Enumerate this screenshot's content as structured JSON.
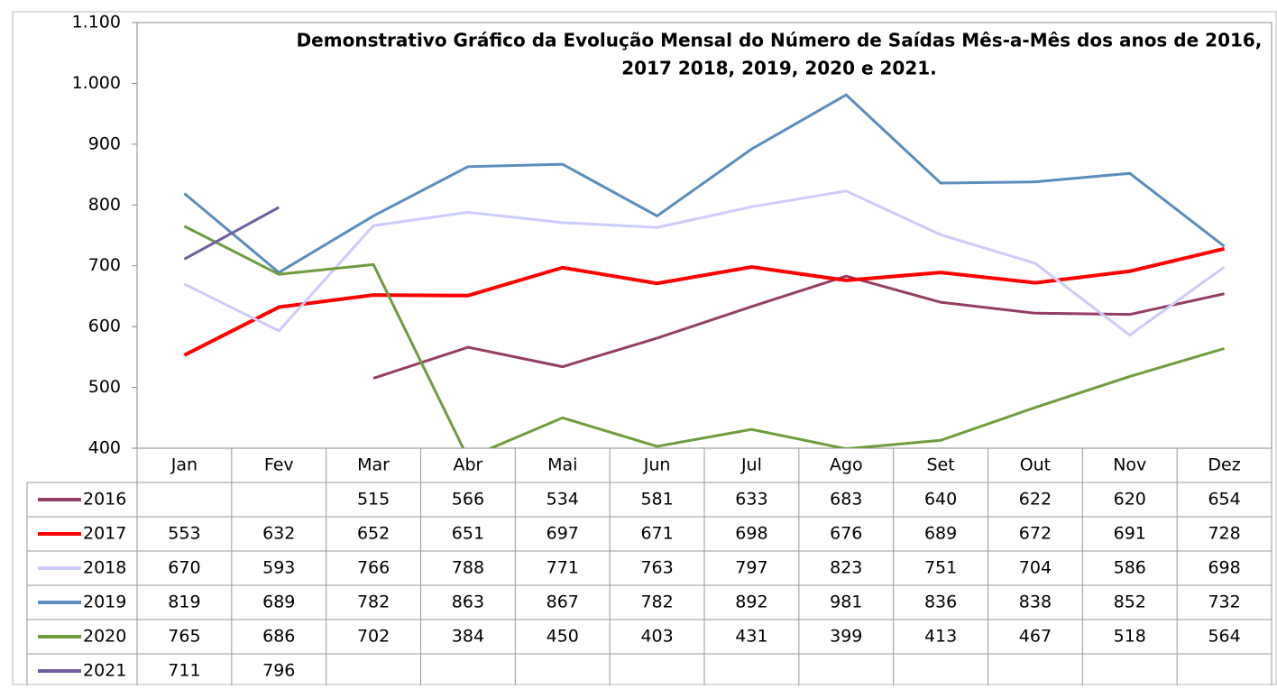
{
  "chart_data": {
    "type": "line",
    "title": [
      "Demonstrativo Gráfico da Evolução Mensal do Número de Saídas Mês-a-Mês dos anos de  2016,",
      "2017 2018, 2019, 2020 e 2021."
    ],
    "categories": [
      "Jan",
      "Fev",
      "Mar",
      "Abr",
      "Mai",
      "Jun",
      "Jul",
      "Ago",
      "Set",
      "Out",
      "Nov",
      "Dez"
    ],
    "series": [
      {
        "name": "2016",
        "color": "#953d63",
        "values": [
          null,
          null,
          515,
          566,
          534,
          581,
          633,
          683,
          640,
          622,
          620,
          654
        ]
      },
      {
        "name": "2017",
        "color": "#ff0000",
        "values": [
          553,
          632,
          652,
          651,
          697,
          671,
          698,
          676,
          689,
          672,
          691,
          728
        ]
      },
      {
        "name": "2018",
        "color": "#ccccff",
        "values": [
          670,
          593,
          766,
          788,
          771,
          763,
          797,
          823,
          751,
          704,
          586,
          698
        ]
      },
      {
        "name": "2019",
        "color": "#5a8dbd",
        "values": [
          819,
          689,
          782,
          863,
          867,
          782,
          892,
          981,
          836,
          838,
          852,
          732
        ]
      },
      {
        "name": "2020",
        "color": "#6e9c3e",
        "values": [
          765,
          686,
          702,
          384,
          450,
          403,
          431,
          399,
          413,
          467,
          518,
          564
        ]
      },
      {
        "name": "2021",
        "color": "#6f5f9e",
        "values": [
          711,
          796,
          null,
          null,
          null,
          null,
          null,
          null,
          null,
          null,
          null,
          null
        ]
      }
    ],
    "ylim": [
      400,
      1100
    ],
    "yticks": [
      400,
      500,
      600,
      700,
      800,
      900,
      {
        "value": 1000,
        "label": "1.000"
      },
      {
        "value": 1100,
        "label": "1.100"
      }
    ]
  }
}
